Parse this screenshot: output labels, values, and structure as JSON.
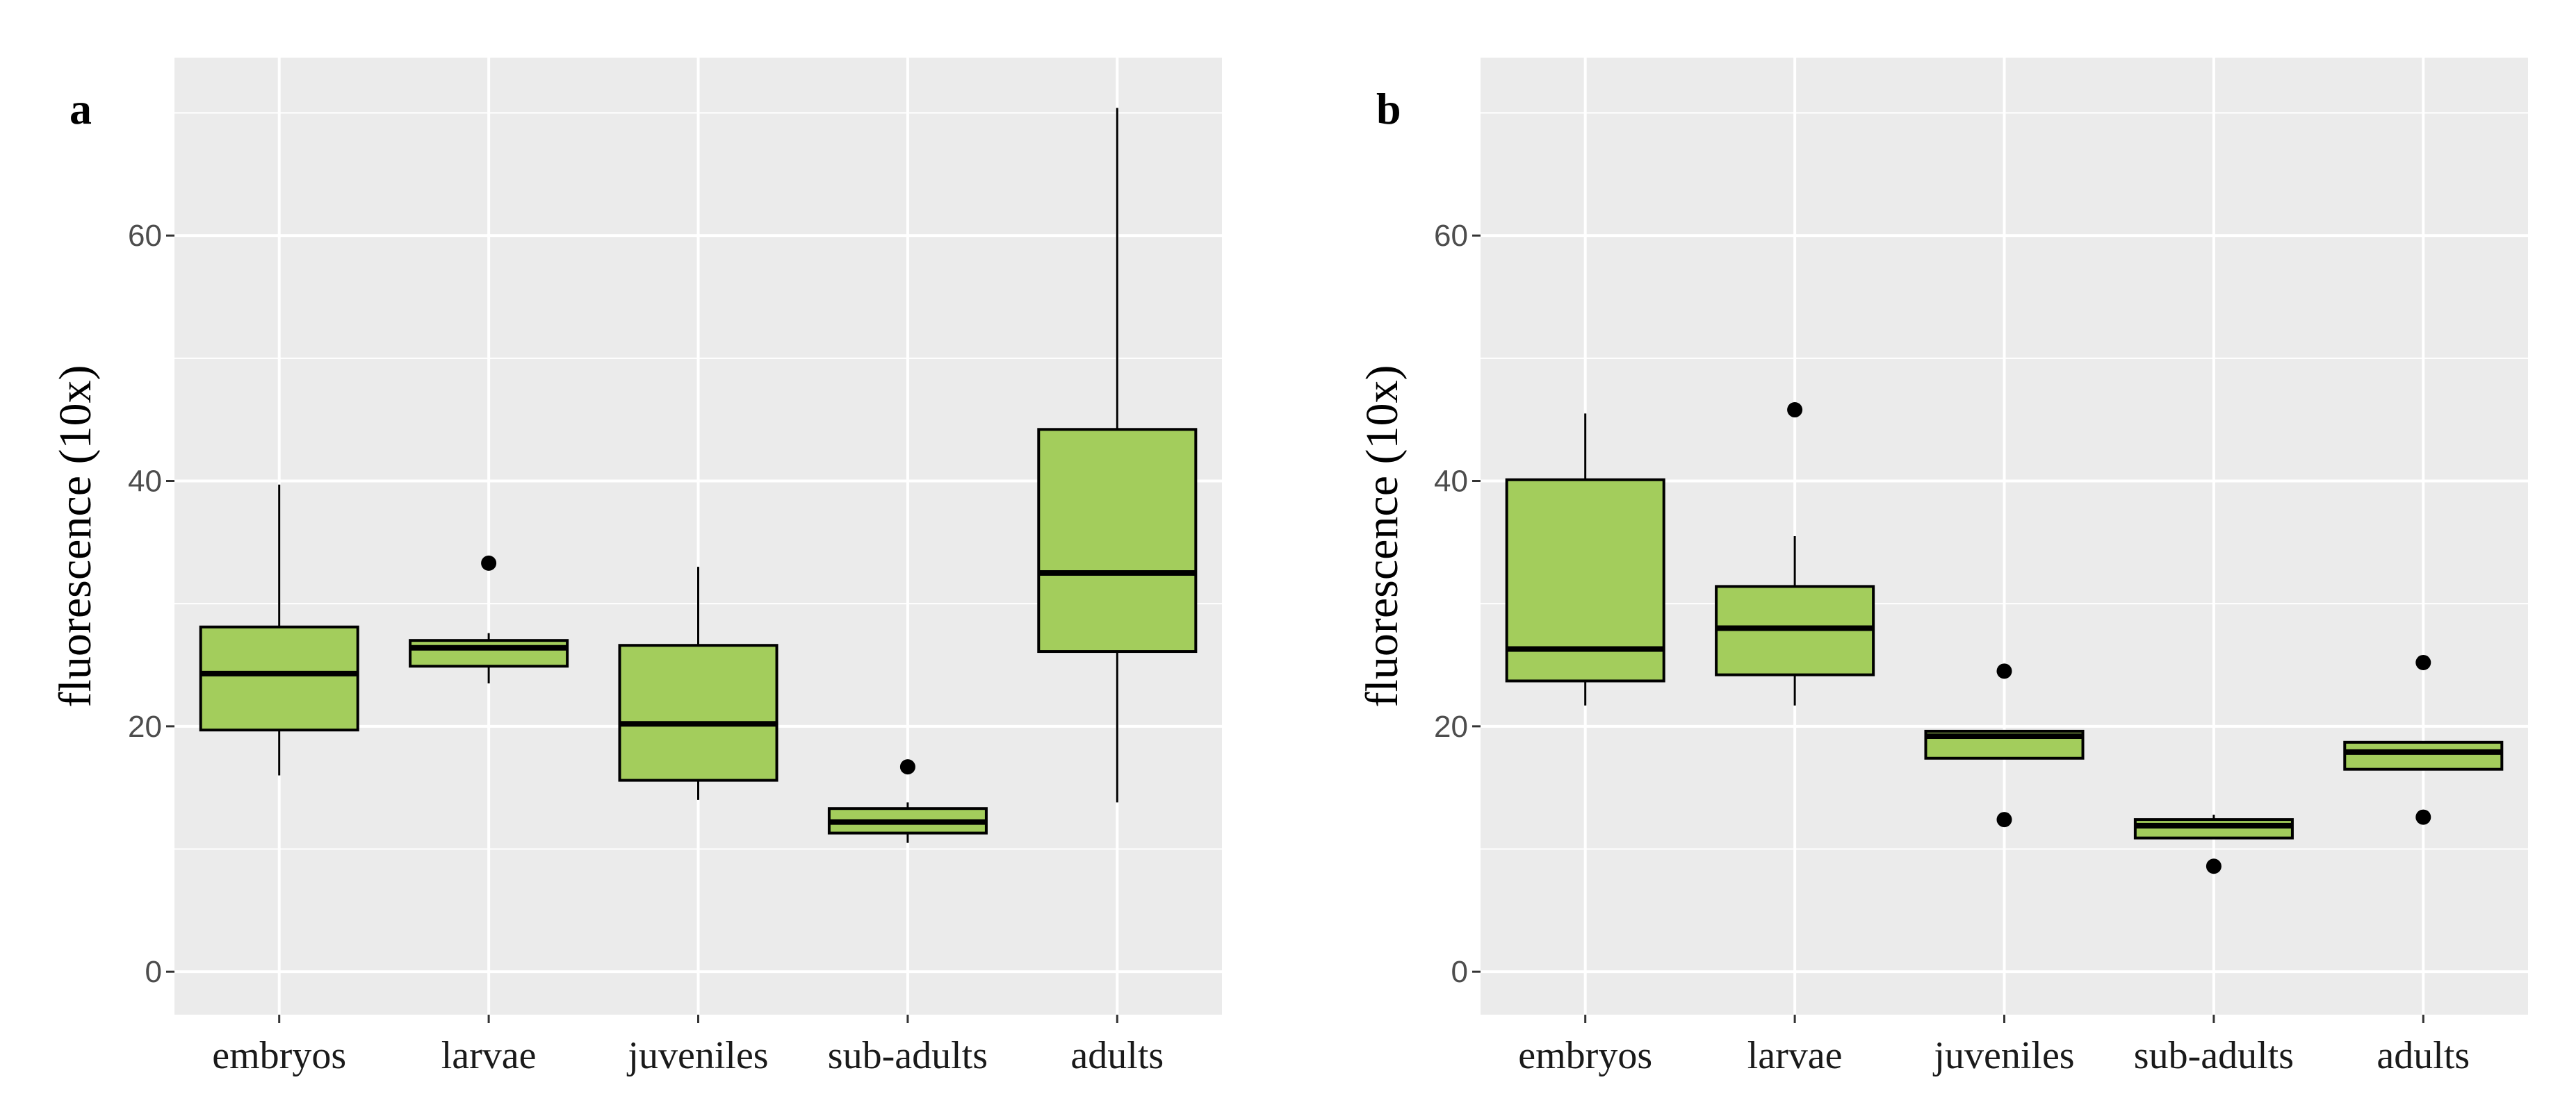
{
  "colors": {
    "panel_background": "#ebebeb",
    "grid": "#ffffff",
    "box_fill": "#a3cd5c",
    "box_stroke": "#000000",
    "outlier": "#000000"
  },
  "chart_data": [
    {
      "type": "boxplot",
      "panel_label": "a",
      "ylabel": "fluorescence (10x)",
      "xlabel": "",
      "ylim": [
        -3.5,
        74.5
      ],
      "yticks": [
        0,
        20,
        40,
        60
      ],
      "categories": [
        "embryos",
        "larvae",
        "juveniles",
        "sub-adults",
        "adults"
      ],
      "boxes": [
        {
          "category": "embryos",
          "min": 16,
          "q1": 19.7,
          "median": 24.3,
          "q3": 28.1,
          "max": 39.7,
          "outliers": []
        },
        {
          "category": "larvae",
          "min": 23.5,
          "q1": 24.9,
          "median": 26.4,
          "q3": 27.0,
          "max": 27.6,
          "outliers": [
            33.3
          ]
        },
        {
          "category": "juveniles",
          "min": 14.0,
          "q1": 15.6,
          "median": 20.2,
          "q3": 26.6,
          "max": 33.0,
          "outliers": []
        },
        {
          "category": "sub-adults",
          "min": 10.5,
          "q1": 11.3,
          "median": 12.2,
          "q3": 13.3,
          "max": 13.8,
          "outliers": [
            16.7
          ]
        },
        {
          "category": "adults",
          "min": 13.8,
          "q1": 26.1,
          "median": 32.5,
          "q3": 44.2,
          "max": 70.4,
          "outliers": []
        }
      ],
      "grid": true,
      "legend": "none"
    },
    {
      "type": "boxplot",
      "panel_label": "b",
      "ylabel": "fluorescence (10x)",
      "xlabel": "",
      "ylim": [
        -3.5,
        74.5
      ],
      "yticks": [
        0,
        20,
        40,
        60
      ],
      "categories": [
        "embryos",
        "larvae",
        "juveniles",
        "sub-adults",
        "adults"
      ],
      "boxes": [
        {
          "category": "embryos",
          "min": 21.7,
          "q1": 23.7,
          "median": 26.3,
          "q3": 40.1,
          "max": 45.5,
          "outliers": []
        },
        {
          "category": "larvae",
          "min": 21.7,
          "q1": 24.2,
          "median": 28.0,
          "q3": 31.4,
          "max": 35.5,
          "outliers": [
            45.8
          ]
        },
        {
          "category": "juveniles",
          "min": 17.4,
          "q1": 17.4,
          "median": 19.2,
          "q3": 19.6,
          "max": 19.6,
          "outliers": [
            24.5,
            12.4
          ]
        },
        {
          "category": "sub-adults",
          "min": 10.9,
          "q1": 10.9,
          "median": 11.9,
          "q3": 12.4,
          "max": 12.8,
          "outliers": [
            8.6
          ]
        },
        {
          "category": "adults",
          "min": 16.5,
          "q1": 16.5,
          "median": 17.9,
          "q3": 18.7,
          "max": 18.7,
          "outliers": [
            25.2,
            12.6
          ]
        }
      ],
      "grid": true,
      "legend": "none"
    }
  ]
}
